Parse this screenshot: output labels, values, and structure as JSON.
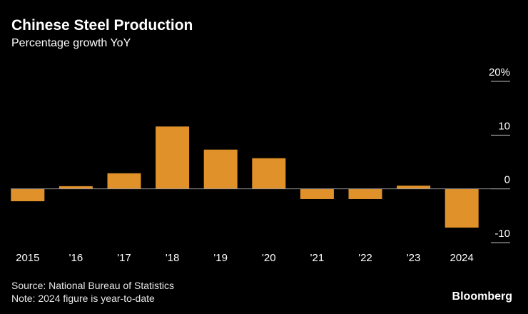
{
  "chart_data": {
    "type": "bar",
    "title": "Chinese Steel Production",
    "subtitle": "Percentage growth YoY",
    "categories": [
      "2015",
      "'16",
      "'17",
      "'18",
      "'19",
      "'20",
      "'21",
      "'22",
      "'23",
      "2024"
    ],
    "values": [
      -2.3,
      0.5,
      2.9,
      11.6,
      7.3,
      5.7,
      -1.9,
      -1.9,
      0.6,
      -7.2
    ],
    "color": "#e0912a",
    "ylim": [
      -10,
      20
    ],
    "yticks": [
      -10,
      0,
      10,
      {
        "value": 20,
        "label": "20%"
      }
    ],
    "source": "Source: National Bureau of Statistics",
    "note": "Note: 2024 figure is year-to-date",
    "logo": "Bloomberg"
  }
}
